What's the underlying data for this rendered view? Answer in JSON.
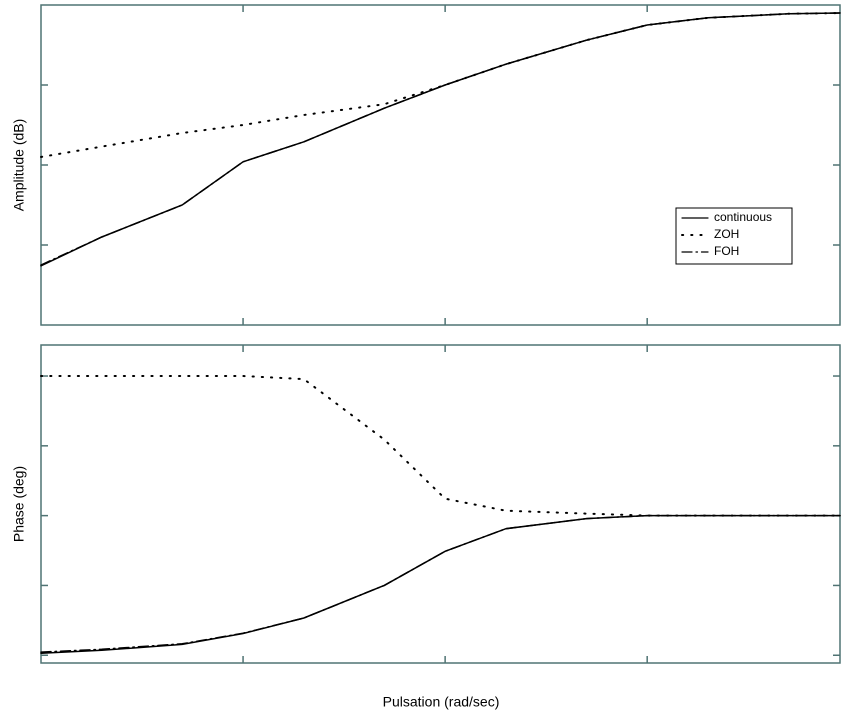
{
  "chart_data": [
    {
      "type": "line",
      "ylabel": "Amplitude (dB)",
      "log_x": true,
      "legend": "lower right",
      "x": [
        0.01,
        0.02,
        0.05,
        0.1,
        0.2,
        0.5,
        1,
        2,
        5,
        10,
        20,
        50,
        90
      ],
      "xlim": [
        0.01,
        90
      ],
      "xticks": [
        0.1,
        1,
        10
      ],
      "ylim": [
        -40,
        0
      ],
      "yticks": [
        -30,
        -20,
        -10
      ],
      "series": [
        {
          "name": "continuous",
          "color": "#000000",
          "style": "solid",
          "values": [
            -32.6,
            -29,
            -25,
            -19.6,
            -17.1,
            -12.9,
            -10,
            -7.4,
            -4.4,
            -2.5,
            -1.6,
            -1.1,
            -1
          ]
        },
        {
          "name": "ZOH",
          "color": "#000000",
          "style": "dotted",
          "values": [
            -19,
            -17.7,
            -16,
            -15,
            -13.75,
            -12.4,
            -10,
            -7.4,
            -4.4,
            -2.5,
            -1.6,
            -1.1,
            -1
          ]
        },
        {
          "name": "FOH",
          "color": "#000000",
          "style": "dashdot",
          "values": [
            -32.5,
            -29,
            -25,
            -19.6,
            -17.1,
            -12.9,
            -10,
            -7.4,
            -4.4,
            -2.5,
            -1.6,
            -1.1,
            -1
          ]
        }
      ]
    },
    {
      "type": "line",
      "ylabel": "Phase (deg)",
      "xlabel": "Pulsation (rad/sec)",
      "log_x": true,
      "legend": false,
      "x": [
        0.01,
        0.02,
        0.05,
        0.1,
        0.2,
        0.5,
        1,
        2,
        5,
        10,
        20,
        50,
        90
      ],
      "xlim": [
        0.01,
        90
      ],
      "xticks": [
        0.1,
        1,
        10
      ],
      "ylim": [
        -95,
        110
      ],
      "yticks": [
        -90,
        -45,
        0,
        45,
        90
      ],
      "series": [
        {
          "color": "#000000",
          "style": "solid",
          "values": [
            -88.7,
            -86.8,
            -83,
            -76,
            -66,
            -45,
            -23,
            -8.4,
            -1.9,
            0,
            0,
            0,
            0
          ]
        },
        {
          "color": "#000000",
          "style": "dotted",
          "values": [
            90,
            90,
            90,
            90,
            88,
            49,
            10.9,
            3.2,
            1.3,
            0,
            0,
            0,
            0
          ]
        },
        {
          "color": "#000000",
          "style": "dashdot",
          "values": [
            -88,
            -86.2,
            -82.6,
            -75.8,
            -66,
            -45,
            -23,
            -8.4,
            -1.9,
            0,
            0,
            0,
            0
          ]
        }
      ]
    }
  ]
}
